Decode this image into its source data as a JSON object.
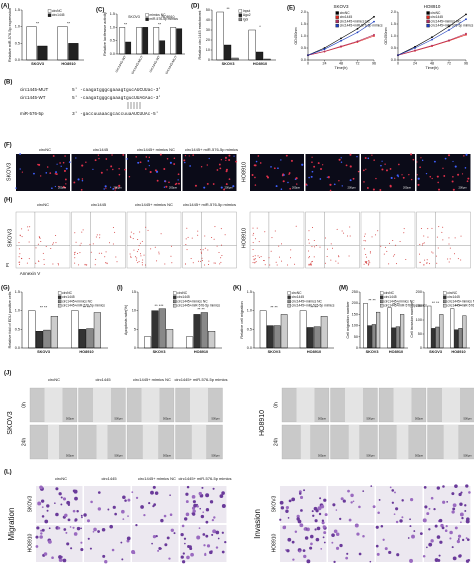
{
  "charts": [
    {
      "label": "(A)",
      "type": "bar",
      "ylabel": "Relative miR-576-5p expression",
      "categories": [
        "SKOV3",
        "HO8910"
      ],
      "series": [
        {
          "name": "circNC",
          "color": "#ffffff",
          "values": [
            1.0,
            1.0
          ]
        },
        {
          "name": "circ1445",
          "color": "#222222",
          "values": [
            0.42,
            0.5
          ]
        }
      ],
      "ylim": [
        0,
        1.5
      ],
      "yticks": [
        {
          "value": 0,
          "label": "0.0"
        },
        {
          "value": 0.5,
          "label": "0.5"
        },
        {
          "value": 1,
          "label": "1.0"
        },
        {
          "value": 1.5,
          "label": "1.5"
        }
      ],
      "annotations": [
        "**",
        "**"
      ]
    },
    {
      "label": "(C)",
      "type": "bar",
      "ylabel": "Relative luciferase activity",
      "groups": [
        "SKOV3",
        "HO8910"
      ],
      "categories": [
        "circ1445-WT",
        "circ1445-MUT",
        "circ1445-WT",
        "circ1445-MUT"
      ],
      "series": [
        {
          "name": "mimics NC",
          "color": "#ffffff",
          "values": [
            1.0,
            1.0,
            1.0,
            1.0
          ]
        },
        {
          "name": "miR-576-5p mimics",
          "color": "#222222",
          "values": [
            0.45,
            1.0,
            0.5,
            0.95
          ]
        }
      ],
      "ylim": [
        0,
        1.5
      ],
      "yticks": [
        {
          "value": 0,
          "label": "0.0"
        },
        {
          "value": 0.5,
          "label": "0.5"
        },
        {
          "value": 1,
          "label": "1.0"
        },
        {
          "value": 1.5,
          "label": "1.5"
        }
      ],
      "annotations": [
        "**",
        "",
        "**",
        ""
      ]
    },
    {
      "label": "(D)",
      "type": "bar",
      "ylabel": "Relative circ1445 enrichment",
      "categories": [
        "SKOV3",
        "HO8910"
      ],
      "series": [
        {
          "name": "Input",
          "color": "#ffffff",
          "values": [
            48,
            30
          ]
        },
        {
          "name": "Ago2",
          "color": "#222222",
          "values": [
            15,
            8
          ]
        },
        {
          "name": "IgG",
          "color": "#888888",
          "values": [
            2,
            1
          ]
        }
      ],
      "ylim": [
        0,
        50
      ],
      "yticks": [
        0,
        10,
        20,
        30,
        40,
        50
      ],
      "annotations": [
        "**",
        "*"
      ]
    },
    {
      "label": "(E)",
      "type": "line",
      "title": "SKOV3",
      "ylabel": "OD450nm",
      "xlabel": "Time(h)",
      "x": [
        0,
        24,
        48,
        72,
        96
      ],
      "series": [
        {
          "name": "circNC",
          "color": "#000000",
          "values": [
            0.2,
            0.5,
            0.9,
            1.3,
            1.8
          ]
        },
        {
          "name": "circ1445",
          "color": "#e0261c",
          "values": [
            0.2,
            0.35,
            0.55,
            0.75,
            1.0
          ]
        },
        {
          "name": "circ1445+mimics NC",
          "color": "#b03060",
          "values": [
            0.2,
            0.36,
            0.57,
            0.78,
            1.05
          ]
        },
        {
          "name": "circ1445+miR-576-5p mimics",
          "color": "#2040c0",
          "values": [
            0.2,
            0.45,
            0.8,
            1.15,
            1.6
          ]
        }
      ],
      "xlim": [
        0,
        96
      ],
      "xticks": [
        0,
        24,
        48,
        72,
        96
      ],
      "ylim": [
        0,
        2
      ],
      "yticks": [
        {
          "value": 0,
          "label": "0.0"
        },
        {
          "value": 0.5,
          "label": "0.5"
        },
        {
          "value": 1,
          "label": "1.0"
        },
        {
          "value": 1.5,
          "label": "1.5"
        },
        {
          "value": 2,
          "label": "2.0"
        }
      ]
    },
    {
      "label": "",
      "type": "line",
      "title": "HO8910",
      "ylabel": "OD450nm",
      "xlabel": "Time(h)",
      "x": [
        0,
        24,
        48,
        72,
        96
      ],
      "series": [
        {
          "name": "circNC",
          "color": "#000000",
          "values": [
            0.2,
            0.55,
            0.95,
            1.4,
            1.9
          ]
        },
        {
          "name": "circ1445",
          "color": "#e0261c",
          "values": [
            0.2,
            0.38,
            0.58,
            0.8,
            1.05
          ]
        },
        {
          "name": "circ1445+mimics NC",
          "color": "#b03060",
          "values": [
            0.2,
            0.4,
            0.6,
            0.82,
            1.1
          ]
        },
        {
          "name": "circ1445+miR-576-5p mimics",
          "color": "#2040c0",
          "values": [
            0.2,
            0.5,
            0.85,
            1.25,
            1.7
          ]
        }
      ],
      "xlim": [
        0,
        96
      ],
      "xticks": [
        0,
        24,
        48,
        72,
        96
      ],
      "ylim": [
        0,
        2
      ],
      "yticks": [
        {
          "value": 0,
          "label": "0.0"
        },
        {
          "value": 0.5,
          "label": "0.5"
        },
        {
          "value": 1,
          "label": "1.0"
        },
        {
          "value": 1.5,
          "label": "1.5"
        },
        {
          "value": 2,
          "label": "2.0"
        }
      ]
    },
    {
      "label": "(G)",
      "type": "bar",
      "ylabel": "Relative fold of EDU positive cells",
      "categories": [
        "SKOV3",
        "HO8910"
      ],
      "series": [
        {
          "name": "circNC",
          "color": "#ffffff",
          "values": [
            1.0,
            1.0
          ]
        },
        {
          "name": "circ1445",
          "color": "#333333",
          "values": [
            0.45,
            0.5
          ]
        },
        {
          "name": "circ1445+mimics NC",
          "color": "#888888",
          "values": [
            0.48,
            0.52
          ]
        },
        {
          "name": "circ1445+miR-576-5p mimics",
          "color": "#cccccc",
          "values": [
            0.85,
            0.95
          ]
        }
      ],
      "ylim": [
        0,
        1.5
      ],
      "yticks": [
        {
          "value": 0,
          "label": "0.0"
        },
        {
          "value": 0.5,
          "label": "0.5"
        },
        {
          "value": 1,
          "label": "1.0"
        },
        {
          "value": 1.5,
          "label": "1.5"
        }
      ],
      "annotations": [
        "** **",
        "** **"
      ]
    },
    {
      "label": "(I)",
      "type": "bar",
      "ylabel": "Apoptosis rate(%)",
      "categories": [
        "SKOV3",
        "HO8910"
      ],
      "series": [
        {
          "name": "circNC",
          "color": "#ffffff",
          "values": [
            3,
            3
          ]
        },
        {
          "name": "circ1445",
          "color": "#333333",
          "values": [
            10,
            9
          ]
        },
        {
          "name": "circ1445+mimics NC",
          "color": "#888888",
          "values": [
            10.5,
            9.5
          ]
        },
        {
          "name": "circ1445+miR-576-5p mimics",
          "color": "#cccccc",
          "values": [
            5,
            4.5
          ]
        }
      ],
      "ylim": [
        0,
        15
      ],
      "yticks": [
        0,
        5,
        10,
        15
      ],
      "annotations": [
        "** ***",
        "** **"
      ]
    },
    {
      "label": "(K)",
      "type": "bar",
      "ylabel": "Relative cell migration",
      "categories": [
        "SKOV3",
        "HO8910"
      ],
      "series": [
        {
          "name": "circNC",
          "color": "#ffffff",
          "values": [
            1.0,
            1.0
          ]
        },
        {
          "name": "circ1445",
          "color": "#333333",
          "values": [
            0.6,
            0.55
          ]
        },
        {
          "name": "circ1445+mimics NC",
          "color": "#888888",
          "values": [
            0.6,
            0.57
          ]
        },
        {
          "name": "circ1445+miR-576-5p mimics",
          "color": "#cccccc",
          "values": [
            0.9,
            0.85
          ]
        }
      ],
      "ylim": [
        0,
        1.5
      ],
      "yticks": [
        {
          "value": 0,
          "label": "0.0"
        },
        {
          "value": 0.5,
          "label": "0.5"
        },
        {
          "value": 1,
          "label": "1.0"
        },
        {
          "value": 1.5,
          "label": "1.5"
        }
      ],
      "annotations": [
        "** **",
        "** **"
      ]
    },
    {
      "label": "(M)",
      "type": "bar",
      "ylabel": "Cell migration number",
      "categories": [
        "SKOV3",
        "HO8910"
      ],
      "series": [
        {
          "name": "circNC",
          "color": "#ffffff",
          "values": [
            200,
            180
          ]
        },
        {
          "name": "circ1445",
          "color": "#333333",
          "values": [
            100,
            90
          ]
        },
        {
          "name": "circ1445+mimics NC",
          "color": "#888888",
          "values": [
            105,
            95
          ]
        },
        {
          "name": "circ1445+miR-576-5p mimics",
          "color": "#cccccc",
          "values": [
            160,
            150
          ]
        }
      ],
      "ylim": [
        0,
        250
      ],
      "yticks": [
        0,
        50,
        100,
        150,
        200,
        250
      ],
      "annotations": [
        "** **",
        "** **"
      ]
    },
    {
      "label": "",
      "type": "bar",
      "ylabel": "Cell invasion number",
      "categories": [
        "SKOV3",
        "HO8910"
      ],
      "series": [
        {
          "name": "circNC",
          "color": "#ffffff",
          "values": [
            150,
            140
          ]
        },
        {
          "name": "circ1445",
          "color": "#333333",
          "values": [
            70,
            65
          ]
        },
        {
          "name": "circ1445+mimics NC",
          "color": "#888888",
          "values": [
            75,
            70
          ]
        },
        {
          "name": "circ1445+miR-576-5p mimics",
          "color": "#cccccc",
          "values": [
            120,
            115
          ]
        }
      ],
      "ylim": [
        0,
        200
      ],
      "yticks": [
        0,
        50,
        100,
        150,
        200
      ],
      "annotations": [
        "** **",
        "** **"
      ]
    }
  ],
  "B": {
    "label": "(B)",
    "rows": [
      {
        "name": "circ1445-MUT",
        "sequence": "5' -caagatgggcgaaagtgucAUCUUac-3'"
      },
      {
        "name": "circ1445-WT",
        "sequence": "5' -caagatgggcgaaagtgucUUAGAac-3'"
      },
      {
        "name": "miR-576-5p",
        "sequence": "3' -gaccuuaaacgcaccuuaAUCUUAc-5'"
      }
    ]
  },
  "F": {
    "label": "(F)",
    "columns": [
      "circNC",
      "circ1445",
      "circ1445+ mimics NC",
      "circ1445+ miR-576-5p mimics"
    ],
    "rows": [
      "SKOV3",
      "HO8910"
    ],
    "scale": "200μm"
  },
  "H": {
    "label": "(H)",
    "columns": [
      "circNC",
      "circ1445",
      "circ1445+ mimics NC",
      "circ1445+ miR-576-5p mimics"
    ],
    "rows": [
      "SKOV3",
      "HO8910"
    ],
    "y_axis": "PI",
    "x_axis": "Annexin V"
  },
  "J": {
    "label": "(J)",
    "columns": [
      "circNC",
      "circ1445",
      "circ1445+ mimics NC",
      "circ1445+ miR-576-5p mimics"
    ],
    "times": [
      "0h",
      "24h"
    ],
    "rows": [
      "SKOV3",
      "HO8910"
    ],
    "scale": "500μm"
  },
  "L": {
    "label": "(L)",
    "columns": [
      "circNC",
      "circ1445",
      "circ1445+ mimics NC",
      "circ1445+ miR-576-5p mimics"
    ],
    "assays": [
      "Migration",
      "Invasion"
    ],
    "rows": [
      "SKOV3",
      "HO8910"
    ]
  }
}
